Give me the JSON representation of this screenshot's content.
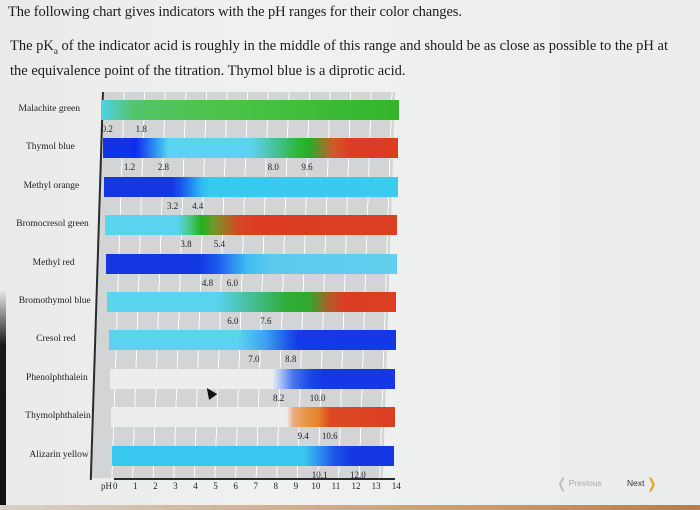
{
  "intro": {
    "line1": "The following chart gives indicators with the pH ranges for their color changes.",
    "line2_prefix": "The pK",
    "line2_sub": "a",
    "line2_suffix": " of the indicator acid is roughly in the middle of this range and should be as close as possible to the pH at the equivalence point of the titration. Thymol blue is a diprotic acid."
  },
  "navigation": {
    "previous_label": "Previous",
    "next_label": "Next",
    "previous_icon": "chevron-left-icon",
    "next_icon": "chevron-right-icon",
    "previous_enabled": false,
    "next_color": "#e7a321"
  },
  "colors": {
    "blue": "#1336e6",
    "light_blue": "#41cdf0",
    "green": "#2fb22f",
    "red": "#db3b22",
    "orange": "#e38a2a",
    "colorless": "#eceded",
    "grid_bg": "#d3d4d6"
  },
  "chart_data": {
    "type": "bar",
    "subtype": "horizontal-range-gradient",
    "title": "",
    "xlabel": "pH",
    "ylabel": "",
    "xlim": [
      0,
      14
    ],
    "x_ticks": [
      "0",
      "1",
      "2",
      "3",
      "4",
      "5",
      "6",
      "7",
      "8",
      "9",
      "10",
      "11",
      "12",
      "13",
      "14"
    ],
    "grid": true,
    "legend": null,
    "categories": [
      "Malachite green",
      "Thymol blue",
      "Methyl orange",
      "Bromocresol green",
      "Methyl red",
      "Bromothymol blue",
      "Cresol red",
      "Phenolphthalein",
      "Thymolphthalein",
      "Alizarin yellow"
    ],
    "series": [
      {
        "name": "Malachite green",
        "ranges": [
          {
            "low": 0.2,
            "high": 1.8,
            "from_color": "light blue",
            "to_color": "green"
          }
        ],
        "range_labels": [
          "0.2",
          "1.8"
        ],
        "gradient": "linear-gradient(90deg,#4fd2ee 0%,#4fd0e0 1%,#54c46a 11%,#4cc449 40%,#33b52a 100%)"
      },
      {
        "name": "Thymol blue",
        "ranges": [
          {
            "low": 1.2,
            "high": 2.8,
            "from_color": "blue",
            "to_color": "light blue"
          },
          {
            "low": 8.0,
            "high": 9.6,
            "from_color": "green",
            "to_color": "red"
          }
        ],
        "range_labels": [
          "1.2",
          "2.8",
          "8.0",
          "9.6"
        ],
        "gradient": "linear-gradient(90deg,#1232e6 0%,#1232e6 9%,#0d2af0 11%,#3fb5f0 20%,#5bd3f2 22%,#5dd2ef 50%,#48c2a0 58%,#2db73a 66%,#27ad29 70%,#cf5a2a 78%,#db3d24 84%,#dc3c22 100%)"
      },
      {
        "name": "Methyl orange",
        "ranges": [
          {
            "low": 3.2,
            "high": 4.4,
            "from_color": "blue",
            "to_color": "light blue"
          }
        ],
        "range_labels": [
          "3.2",
          "4.4"
        ],
        "gradient": "linear-gradient(90deg,#1437e4 0%,#1437e4 23%,#1a52ee 26%,#30b8ef 33%,#38c9ee 36%,#3acbed 100%)"
      },
      {
        "name": "Bromocresol green",
        "ranges": [
          {
            "low": 3.8,
            "high": 5.4,
            "from_color": "light blue",
            "to_color": "green/red"
          }
        ],
        "range_labels": [
          "3.8",
          "5.4"
        ],
        "gradient": "linear-gradient(90deg,#5ad3ef 0%,#5ad3ef 25%,#43c36a 30%,#21b121 33%,#6f9a2a 37%,#d84524 46%,#dc3d22 52%,#dc3e22 100%)"
      },
      {
        "name": "Methyl red",
        "ranges": [
          {
            "low": 4.8,
            "high": 6.0,
            "from_color": "blue",
            "to_color": "light blue"
          }
        ],
        "range_labels": [
          "4.8",
          "6.0"
        ],
        "gradient": "linear-gradient(90deg,#1437e4 0%,#1437e4 32%,#1c58ee 38%,#3cbaf0 48%,#5ac9ec 56%,#62cfee 100%)"
      },
      {
        "name": "Bromothymol blue",
        "ranges": [
          {
            "low": 6.0,
            "high": 7.6,
            "from_color": "light blue",
            "to_color": "green/red"
          }
        ],
        "range_labels": [
          "6.0",
          "7.6"
        ],
        "gradient": "linear-gradient(90deg,#5ad3ef 0%,#5ad3ef 38%,#49c0a4 48%,#2eae39 62%,#2fa82c 70%,#b35a29 77%,#db3d23 82%,#dc3e22 100%)"
      },
      {
        "name": "Cresol red",
        "ranges": [
          {
            "low": 7.0,
            "high": 8.8,
            "from_color": "light blue",
            "to_color": "blue"
          }
        ],
        "range_labels": [
          "7.0",
          "8.8"
        ],
        "gradient": "linear-gradient(90deg,#5ad3ef 0%,#5ad3ef 45%,#3d9ef1 55%,#1c5aea 62%,#1639e6 66%,#1438e6 100%)"
      },
      {
        "name": "Phenolphthalein",
        "ranges": [
          {
            "low": 8.2,
            "high": 10.0,
            "from_color": "colorless",
            "to_color": "blue"
          }
        ],
        "range_labels": [
          "8.2",
          "10.0"
        ],
        "gradient": "linear-gradient(90deg,#eceded 0%,#eceded 57%,#a6c0f2 60%,#4b78ed 64%,#1d47e8 70%,#1438e6 75%,#1438e6 100%)"
      },
      {
        "name": "Thymolphthalein",
        "ranges": [
          {
            "low": 9.4,
            "high": 10.6,
            "from_color": "colorless",
            "to_color": "red/orange"
          }
        ],
        "range_labels": [
          "9.4",
          "10.6"
        ],
        "gradient": "linear-gradient(90deg,#eceded 0%,#eceded 62%,#eeae84 64%,#e49a4c 68%,#e3832a 73%,#dd4a24 77%,#db3d22 100%)"
      },
      {
        "name": "Alizarin yellow",
        "ranges": [
          {
            "low": 10.1,
            "high": 12.0,
            "from_color": "light blue",
            "to_color": "blue"
          }
        ],
        "range_labels": [
          "10.1",
          "12.0"
        ],
        "gradient": "linear-gradient(90deg,#38c7ee 0%,#38c7ee 68%,#2f94ee 73%,#1d53e8 79%,#1438e6 85%,#1438e6 100%)"
      }
    ]
  }
}
